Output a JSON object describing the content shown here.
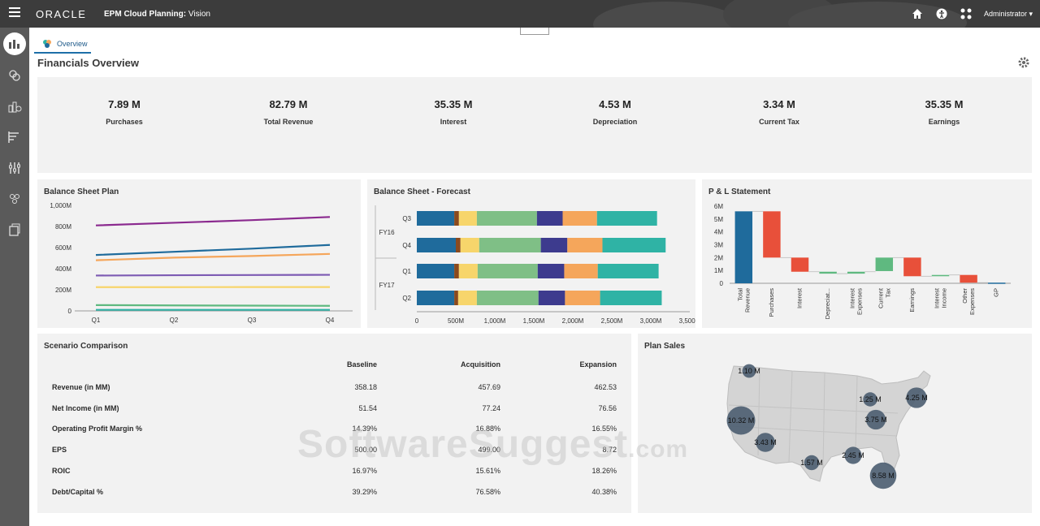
{
  "header": {
    "logo": "ORACLE",
    "app_title_bold": "EPM Cloud Planning:",
    "app_title_rest": " Vision",
    "user": "Administrator",
    "icons": [
      "home-icon",
      "accessibility-icon",
      "apps-grid-icon"
    ]
  },
  "sidebar": {
    "items": [
      "overview-dashboard-icon",
      "financials-icon",
      "revenue-icon",
      "capital-icon",
      "projects-icon",
      "workforce-icon",
      "reports-icon"
    ]
  },
  "tabs": [
    {
      "label": "Overview"
    }
  ],
  "page": {
    "title": "Financials Overview"
  },
  "kpis": [
    {
      "value": "7.89 M",
      "label": "Purchases"
    },
    {
      "value": "82.79 M",
      "label": "Total Revenue"
    },
    {
      "value": "35.35 M",
      "label": "Interest"
    },
    {
      "value": "4.53 M",
      "label": "Depreciation"
    },
    {
      "value": "3.34 M",
      "label": "Current Tax"
    },
    {
      "value": "35.35 M",
      "label": "Earnings"
    }
  ],
  "colors": {
    "blue": "#1f6b9c",
    "purple": "#8b2a8f",
    "orange": "#f5a65b",
    "violet": "#7d5bb3",
    "yellow": "#f7d56b",
    "green": "#5fb980",
    "teal": "#2fb3a5",
    "red": "#e8503a",
    "topbar": "#3c3c3c",
    "sidebar": "#5a5a5a"
  },
  "chart_data": [
    {
      "type": "line",
      "title": "Balance Sheet Plan",
      "categories": [
        "Q1",
        "Q2",
        "Q3",
        "Q4"
      ],
      "yticks": [
        "0",
        "200M",
        "400M",
        "600M",
        "800M",
        "1,000M"
      ],
      "ylim": [
        0,
        1000
      ],
      "series": [
        {
          "color": "#8b2a8f",
          "values": [
            810,
            835,
            860,
            890
          ]
        },
        {
          "color": "#1f6b9c",
          "values": [
            530,
            560,
            590,
            625
          ]
        },
        {
          "color": "#f5a65b",
          "values": [
            480,
            505,
            520,
            540
          ]
        },
        {
          "color": "#7d5bb3",
          "values": [
            335,
            338,
            340,
            342
          ]
        },
        {
          "color": "#f7d56b",
          "values": [
            225,
            225,
            226,
            226
          ]
        },
        {
          "color": "#5fb980",
          "values": [
            55,
            52,
            50,
            48
          ]
        },
        {
          "color": "#2fb3a5",
          "values": [
            10,
            10,
            10,
            10
          ]
        }
      ]
    },
    {
      "type": "bar",
      "orientation": "horizontal-stacked",
      "title": "Balance Sheet - Forecast",
      "groups": [
        {
          "label": "FY16",
          "rows": [
            "Q3",
            "Q4"
          ]
        },
        {
          "label": "FY17",
          "rows": [
            "Q1",
            "Q2"
          ]
        }
      ],
      "xticks": [
        "0",
        "500M",
        "1,000M",
        "1,500M",
        "2,000M",
        "2,500M",
        "3,000M",
        "3,500M"
      ],
      "xlim": [
        0,
        3500
      ],
      "segment_colors": [
        "#1f6b9c",
        "#8a4a1e",
        "#f7d56b",
        "#7fbf86",
        "#3d3b8e",
        "#f5a65b",
        "#2fb3a5"
      ],
      "rows": [
        {
          "label": "Q3",
          "values": [
            480,
            60,
            230,
            770,
            330,
            440,
            770
          ]
        },
        {
          "label": "Q4",
          "values": [
            500,
            60,
            240,
            790,
            340,
            450,
            810
          ]
        },
        {
          "label": "Q1",
          "values": [
            480,
            60,
            240,
            770,
            340,
            430,
            780
          ]
        },
        {
          "label": "Q2",
          "values": [
            480,
            50,
            240,
            790,
            340,
            450,
            790
          ]
        }
      ]
    },
    {
      "type": "bar",
      "orientation": "waterfall",
      "title": "P & L Statement",
      "yticks": [
        "0",
        "1M",
        "2M",
        "3M",
        "4M",
        "5M",
        "6M"
      ],
      "ylim": [
        0,
        6
      ],
      "bars": [
        {
          "label": "Total Revenue",
          "start": 0,
          "end": 5.6,
          "color": "#1f6b9c"
        },
        {
          "label": "Purchases",
          "start": 5.6,
          "end": 2.0,
          "color": "#e8503a"
        },
        {
          "label": "Interest",
          "start": 2.0,
          "end": 0.9,
          "color": "#e8503a"
        },
        {
          "label": "Depreciat...",
          "start": 0.9,
          "end": 0.75,
          "color": "#5fb980"
        },
        {
          "label": "Interest Expenses",
          "start": 0.75,
          "end": 0.9,
          "color": "#5fb980"
        },
        {
          "label": "Current Tax",
          "start": 0.95,
          "end": 2.0,
          "color": "#5fb980"
        },
        {
          "label": "Earnings",
          "start": 2.0,
          "end": 0.55,
          "color": "#e8503a"
        },
        {
          "label": "Interest Income",
          "start": 0.55,
          "end": 0.65,
          "color": "#5fb980"
        },
        {
          "label": "Other Expenses",
          "start": 0.65,
          "end": 0.05,
          "color": "#e8503a"
        },
        {
          "label": "GP",
          "start": 0.05,
          "end": 0.0,
          "color": "#1f6b9c"
        }
      ]
    }
  ],
  "scenario": {
    "title": "Scenario Comparison",
    "columns": [
      "Baseline",
      "Acquisition",
      "Expansion"
    ],
    "rows": [
      {
        "label": "Revenue (in MM)",
        "values": [
          "358.18",
          "457.69",
          "462.53"
        ]
      },
      {
        "label": "Net Income (in MM)",
        "values": [
          "51.54",
          "77.24",
          "76.56"
        ]
      },
      {
        "label": "Operating Profit Margin %",
        "values": [
          "14.39%",
          "16.88%",
          "16.55%"
        ]
      },
      {
        "label": "EPS",
        "values": [
          "500.00",
          "499.00",
          "8.72"
        ]
      },
      {
        "label": "ROIC",
        "values": [
          "16.97%",
          "15.61%",
          "18.26%"
        ]
      },
      {
        "label": "Debt/Capital %",
        "values": [
          "39.29%",
          "76.58%",
          "40.38%"
        ]
      }
    ]
  },
  "plan_sales": {
    "title": "Plan Sales",
    "bubbles": [
      {
        "label": "1.10 M",
        "value": 1.1
      },
      {
        "label": "1.25 M",
        "value": 1.25
      },
      {
        "label": "4.25 M",
        "value": 4.25
      },
      {
        "label": "10.32 M",
        "value": 10.32
      },
      {
        "label": "3.75 M",
        "value": 3.75
      },
      {
        "label": "3.43 M",
        "value": 3.43
      },
      {
        "label": "2.45 M",
        "value": 2.45
      },
      {
        "label": "1.57 M",
        "value": 1.57
      },
      {
        "label": "8.58 M",
        "value": 8.58
      }
    ]
  },
  "watermark": {
    "main": "SoftwareSuggest",
    "suffix": ".com"
  }
}
